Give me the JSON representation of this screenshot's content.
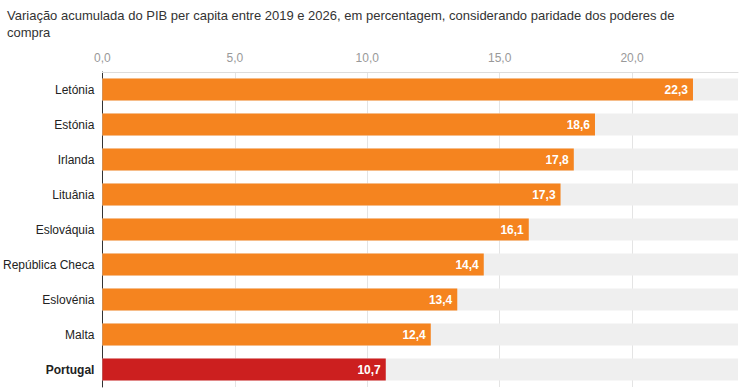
{
  "chart_data": {
    "type": "bar",
    "orientation": "horizontal",
    "title": "Variação acumulada do PIB per capita entre 2019 e 2026, em percentagem, considerando paridade dos poderes de compra",
    "categories": [
      "Letónia",
      "Estónia",
      "Irlanda",
      "Lituânia",
      "Eslováquia",
      "República Checa",
      "Eslovénia",
      "Malta",
      "Portugal"
    ],
    "values": [
      22.3,
      18.6,
      17.8,
      17.3,
      16.1,
      14.4,
      13.4,
      12.4,
      10.7
    ],
    "value_labels": [
      "22,3",
      "18,6",
      "17,8",
      "17,3",
      "16,1",
      "14,4",
      "13,4",
      "12,4",
      "10,7"
    ],
    "colors": [
      "#f5841f",
      "#f5841f",
      "#f5841f",
      "#f5841f",
      "#f5841f",
      "#f5841f",
      "#f5841f",
      "#f5841f",
      "#cc1f1f"
    ],
    "xlim": [
      0,
      24
    ],
    "xticks": [
      {
        "value": 0,
        "label": "0,0"
      },
      {
        "value": 5,
        "label": "5,0"
      },
      {
        "value": 10,
        "label": "10,0"
      },
      {
        "value": 15,
        "label": "15,0"
      },
      {
        "value": 20,
        "label": "20,0"
      }
    ],
    "grid": true,
    "data_labels": true
  }
}
